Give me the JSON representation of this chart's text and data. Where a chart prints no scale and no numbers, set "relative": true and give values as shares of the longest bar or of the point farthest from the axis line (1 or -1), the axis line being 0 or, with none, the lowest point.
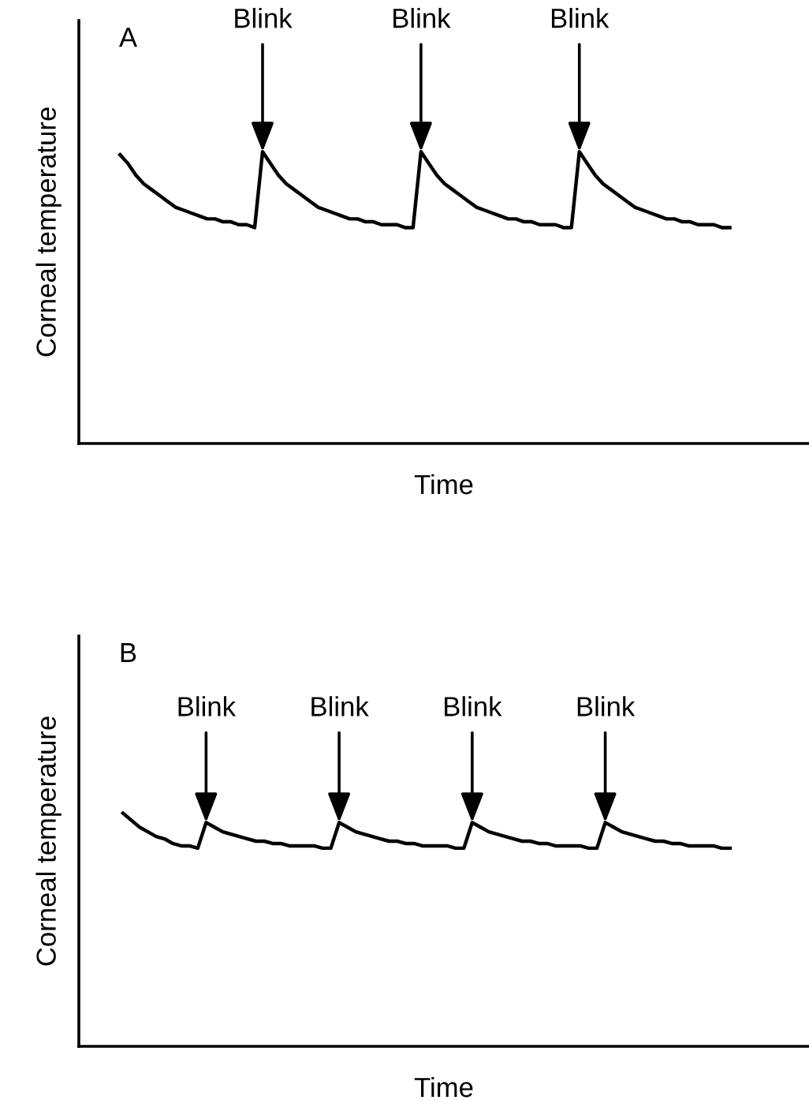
{
  "chart_data": [
    {
      "type": "line",
      "title": "A",
      "xlabel": "Time",
      "ylabel": "Corneal temperature",
      "relative": true,
      "tick_labels": false,
      "grid": false,
      "legend": false,
      "marker": "none",
      "line_style": "solid",
      "categories": [
        null,
        null,
        null,
        null,
        null,
        null,
        null,
        null,
        null,
        null,
        null,
        null,
        null,
        null,
        null,
        null,
        null,
        null,
        null,
        null,
        null,
        null,
        null,
        null,
        null,
        null,
        null,
        null,
        null,
        null,
        null,
        null,
        null,
        null,
        null,
        null,
        null,
        null,
        null,
        null,
        null,
        null,
        null,
        null,
        null,
        null,
        null,
        null,
        null,
        null,
        null,
        null,
        null,
        null,
        null,
        null,
        null,
        null,
        null,
        null,
        null,
        null,
        null,
        null,
        null,
        null,
        null,
        null,
        null,
        null,
        null,
        null,
        null,
        null,
        null,
        null,
        null,
        null
      ],
      "series": [
        {
          "color": "#000000",
          "values": [
            0.99,
            0.96,
            0.92,
            0.89,
            0.87,
            0.85,
            0.83,
            0.81,
            0.8,
            0.79,
            0.78,
            0.77,
            0.77,
            0.76,
            0.76,
            0.75,
            0.75,
            0.74,
            1.0,
            0.96,
            0.92,
            0.89,
            0.87,
            0.85,
            0.83,
            0.81,
            0.8,
            0.79,
            0.78,
            0.77,
            0.77,
            0.76,
            0.76,
            0.75,
            0.75,
            0.75,
            0.74,
            0.74,
            1.0,
            0.96,
            0.92,
            0.89,
            0.87,
            0.85,
            0.83,
            0.81,
            0.8,
            0.79,
            0.78,
            0.77,
            0.77,
            0.76,
            0.76,
            0.75,
            0.75,
            0.75,
            0.74,
            0.74,
            1.0,
            0.96,
            0.92,
            0.89,
            0.87,
            0.85,
            0.83,
            0.81,
            0.8,
            0.79,
            0.78,
            0.77,
            0.77,
            0.76,
            0.76,
            0.75,
            0.75,
            0.75,
            0.74,
            0.74
          ]
        }
      ],
      "annotations": [
        {
          "text": "Blink",
          "y": 1.0
        },
        {
          "text": "Blink",
          "y": 1.0
        },
        {
          "text": "Blink",
          "y": 1.0
        }
      ]
    },
    {
      "type": "line",
      "title": "B",
      "xlabel": "Time",
      "ylabel": "Corneal temperature",
      "relative": true,
      "tick_labels": false,
      "grid": false,
      "legend": false,
      "marker": "none",
      "line_style": "solid",
      "categories": [
        null,
        null,
        null,
        null,
        null,
        null,
        null,
        null,
        null,
        null,
        null,
        null,
        null,
        null,
        null,
        null,
        null,
        null,
        null,
        null,
        null,
        null,
        null,
        null,
        null,
        null,
        null,
        null,
        null,
        null,
        null,
        null,
        null,
        null,
        null,
        null,
        null,
        null,
        null,
        null,
        null,
        null,
        null,
        null,
        null,
        null,
        null,
        null,
        null,
        null,
        null,
        null,
        null,
        null,
        null,
        null,
        null,
        null,
        null,
        null,
        null,
        null,
        null,
        null,
        null,
        null,
        null,
        null,
        null,
        null,
        null,
        null,
        null,
        null
      ],
      "series": [
        {
          "color": "#000000",
          "values": [
            1.0,
            0.97,
            0.94,
            0.92,
            0.9,
            0.89,
            0.87,
            0.86,
            0.86,
            0.85,
            0.96,
            0.94,
            0.92,
            0.91,
            0.9,
            0.89,
            0.88,
            0.88,
            0.87,
            0.87,
            0.86,
            0.86,
            0.86,
            0.86,
            0.85,
            0.85,
            0.96,
            0.94,
            0.92,
            0.91,
            0.9,
            0.89,
            0.88,
            0.88,
            0.87,
            0.87,
            0.86,
            0.86,
            0.86,
            0.86,
            0.85,
            0.85,
            0.96,
            0.94,
            0.92,
            0.91,
            0.9,
            0.89,
            0.88,
            0.88,
            0.87,
            0.87,
            0.86,
            0.86,
            0.86,
            0.86,
            0.85,
            0.85,
            0.96,
            0.94,
            0.92,
            0.91,
            0.9,
            0.89,
            0.88,
            0.88,
            0.87,
            0.87,
            0.86,
            0.86,
            0.86,
            0.86,
            0.85,
            0.85
          ]
        }
      ],
      "annotations": [
        {
          "text": "Blink",
          "y": 0.96
        },
        {
          "text": "Blink",
          "y": 0.96
        },
        {
          "text": "Blink",
          "y": 0.96
        },
        {
          "text": "Blink",
          "y": 0.96
        }
      ]
    }
  ]
}
